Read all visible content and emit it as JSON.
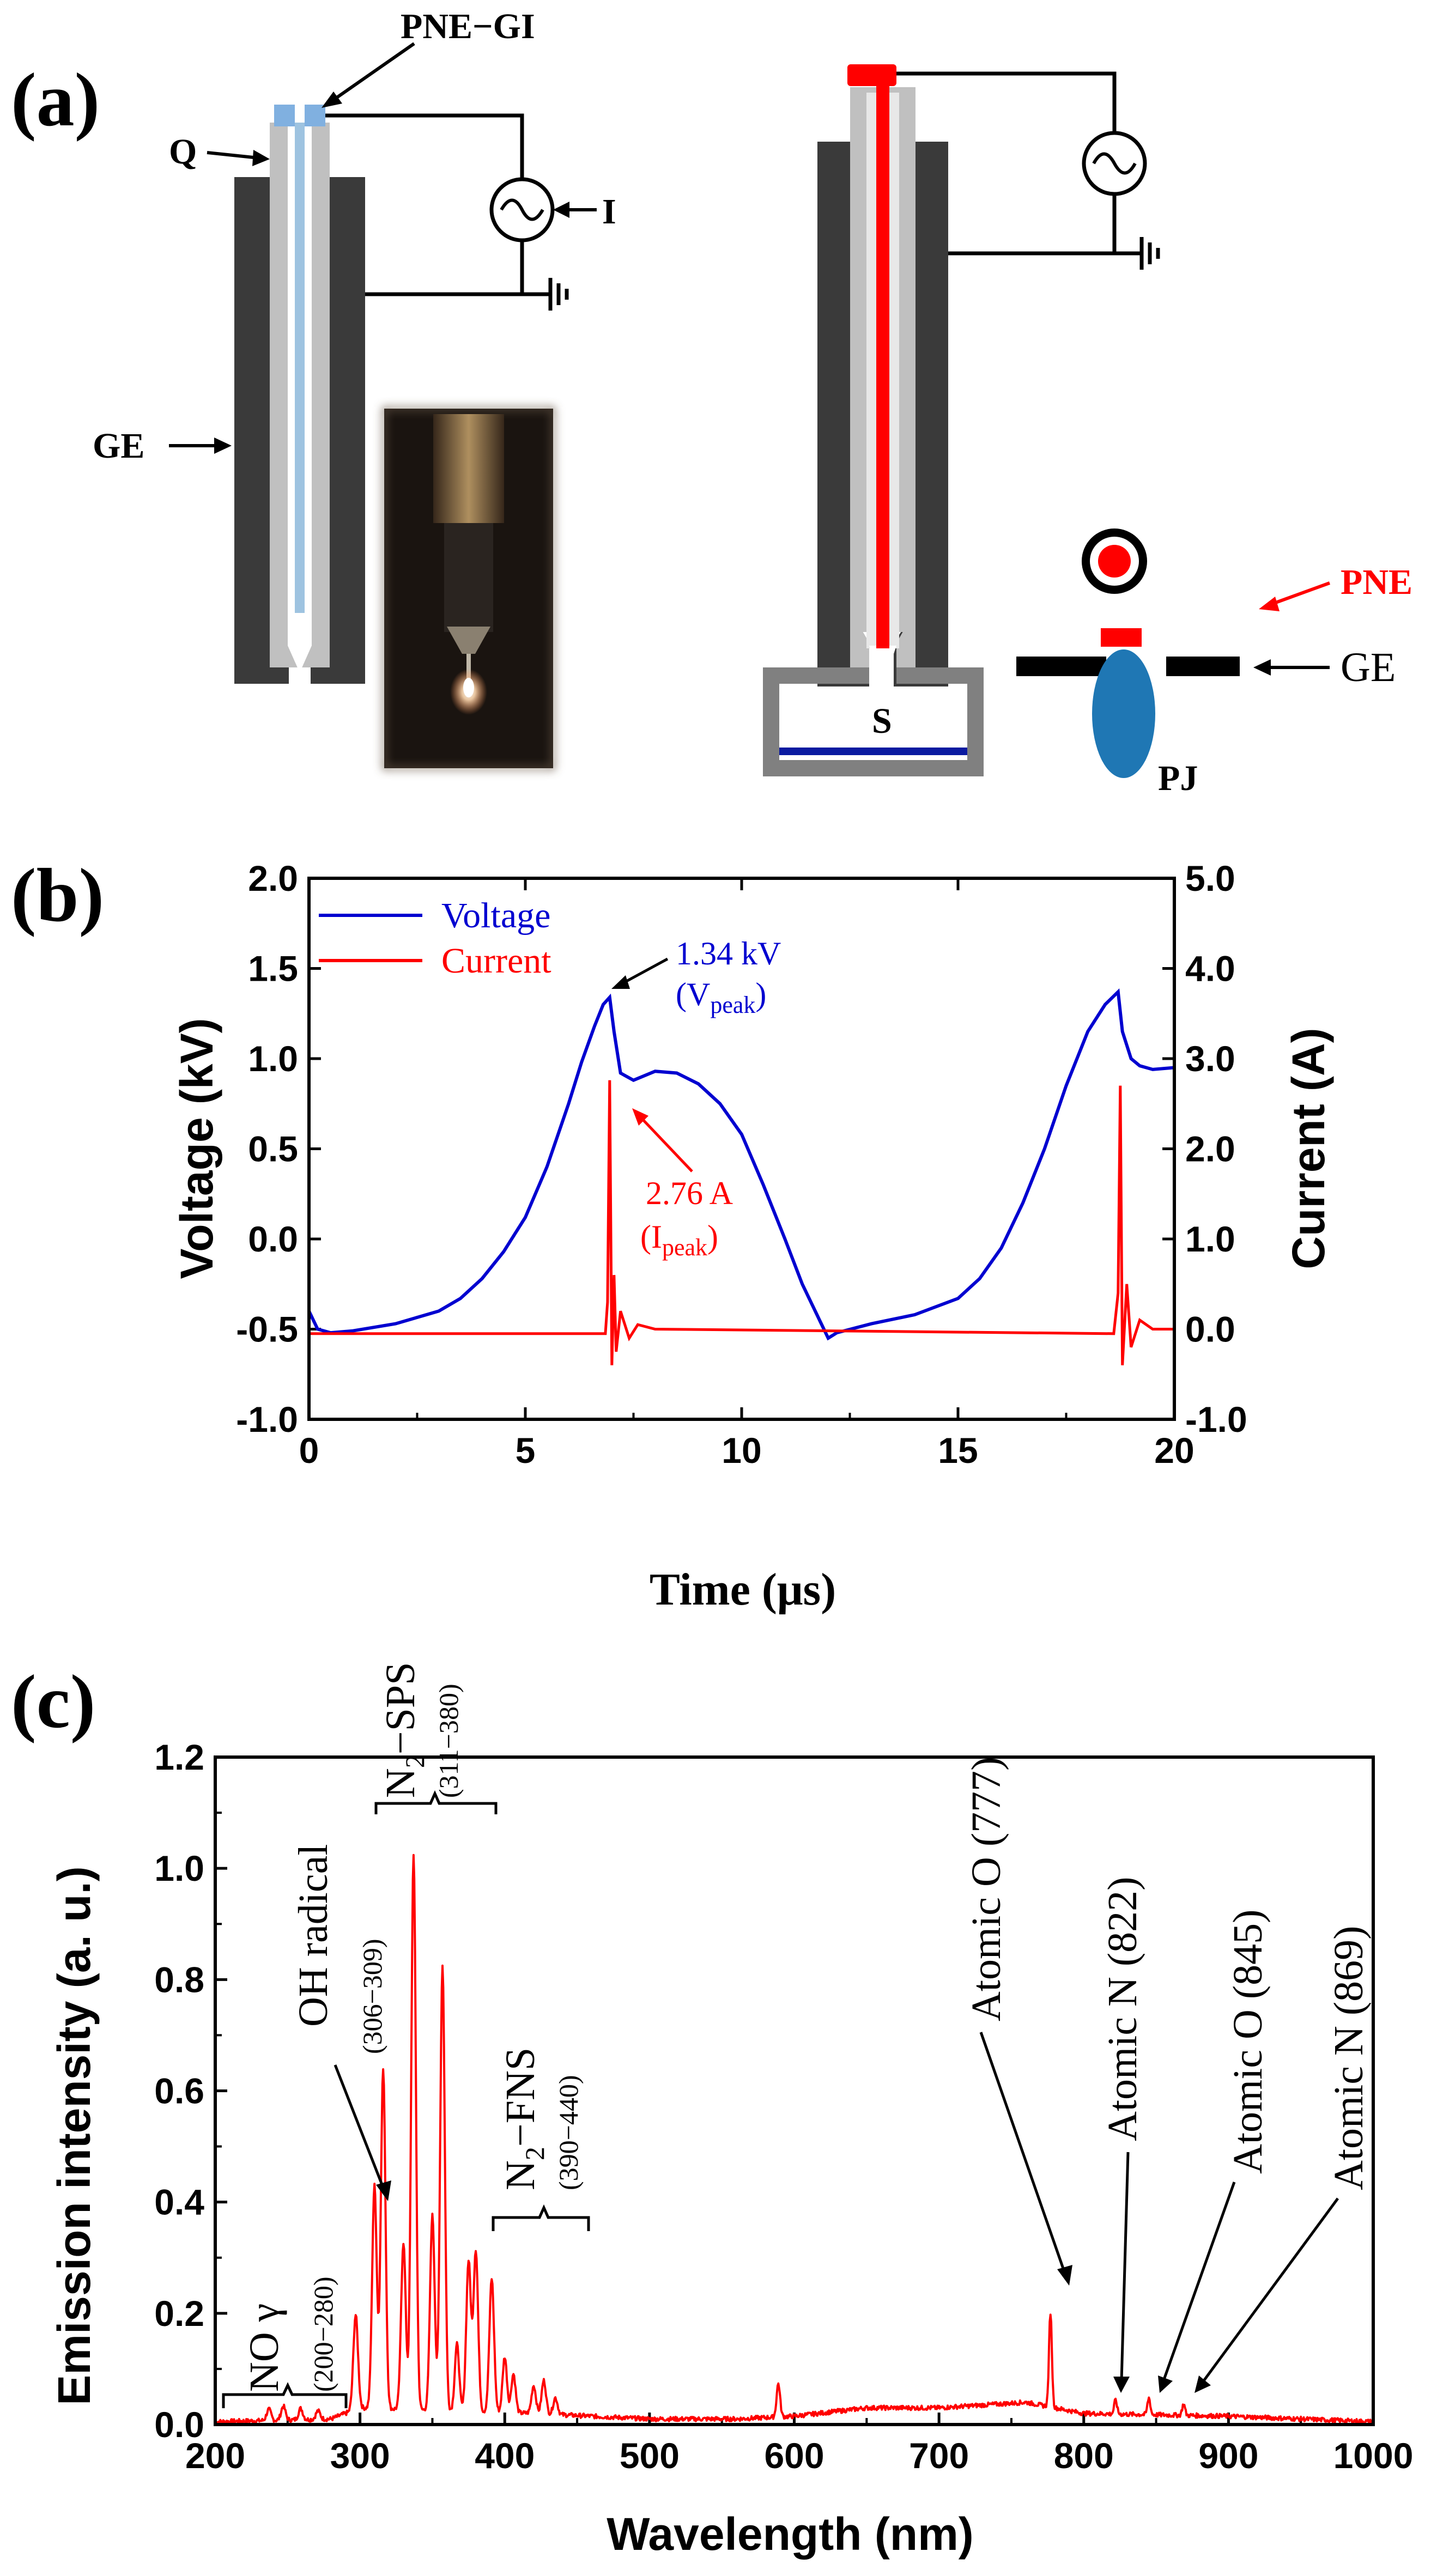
{
  "panels": {
    "a": "(a)",
    "b": "(b)",
    "c": "(c)"
  },
  "diagram": {
    "labels": {
      "pne_gi": "PNE−GI",
      "q": "Q",
      "i": "I",
      "ge_left": "GE",
      "s": "S",
      "pne": "PNE",
      "ge_right": "GE",
      "pj": "PJ"
    },
    "colors": {
      "electrode_dark": "#3a3a3a",
      "quartz": "#c0c0c0",
      "inner_gap": "#ffffff",
      "wire_blue": "#9ec3e0",
      "cap_blue": "#80b0e0",
      "pne_red": "#ff0000",
      "jet_blue": "#1f77b4",
      "substrate_line": "#0a1aa0",
      "photo_bg": "#1a1410"
    }
  },
  "chart_data": [
    {
      "type": "line",
      "id": "b",
      "xlabel": "Time (μs)",
      "ylabel": "Voltage (kV)",
      "ylabel_right": "Current (A)",
      "xlim": [
        0,
        20
      ],
      "ylim": [
        -1.0,
        2.0
      ],
      "ylim_right": [
        -1.0,
        5.0
      ],
      "x_ticks": [
        "0",
        "5",
        "10",
        "15",
        "20"
      ],
      "y_ticks": [
        "-1.0",
        "-0.5",
        "0.0",
        "0.5",
        "1.0",
        "1.5",
        "2.0"
      ],
      "y_ticks_right": [
        "-1.0",
        "0.0",
        "1.0",
        "2.0",
        "3.0",
        "4.0",
        "5.0"
      ],
      "legend_position": "top-left",
      "series": [
        {
          "name": "Voltage",
          "color": "#0000d0",
          "axis": "left",
          "x": [
            0,
            0.2,
            0.5,
            1.0,
            2.0,
            3.0,
            3.5,
            4.0,
            4.5,
            5.0,
            5.5,
            6.0,
            6.3,
            6.6,
            6.8,
            6.95,
            7.05,
            7.2,
            7.5,
            8.0,
            8.5,
            9.0,
            9.5,
            10.0,
            10.5,
            11.0,
            11.4,
            11.8,
            12.0,
            12.2,
            13.0,
            14.0,
            15.0,
            15.5,
            16.0,
            16.5,
            17.0,
            17.5,
            18.0,
            18.4,
            18.7,
            18.8,
            19.0,
            19.2,
            19.5,
            20.0
          ],
          "y": [
            -0.4,
            -0.5,
            -0.52,
            -0.51,
            -0.47,
            -0.4,
            -0.33,
            -0.22,
            -0.07,
            0.12,
            0.4,
            0.75,
            0.98,
            1.18,
            1.3,
            1.34,
            1.15,
            0.92,
            0.88,
            0.93,
            0.92,
            0.86,
            0.75,
            0.58,
            0.3,
            0.0,
            -0.25,
            -0.45,
            -0.55,
            -0.52,
            -0.47,
            -0.42,
            -0.33,
            -0.22,
            -0.05,
            0.2,
            0.5,
            0.85,
            1.15,
            1.3,
            1.37,
            1.15,
            1.0,
            0.96,
            0.94,
            0.95
          ],
          "annotation": "1.34 kV",
          "annotation_sub": "(V",
          "annotation_subscript": "peak",
          "annotation_close": ")"
        },
        {
          "name": "Current",
          "color": "#ff0000",
          "axis": "right",
          "x": [
            0,
            6.85,
            6.9,
            6.95,
            7.0,
            7.05,
            7.1,
            7.2,
            7.4,
            7.6,
            8.0,
            18.6,
            18.7,
            18.75,
            18.8,
            18.9,
            19.0,
            19.2,
            19.5,
            20.0
          ],
          "y": [
            -0.05,
            -0.05,
            0.3,
            2.76,
            -0.4,
            0.6,
            -0.25,
            0.2,
            -0.1,
            0.05,
            0.0,
            -0.05,
            0.4,
            2.7,
            -0.4,
            0.5,
            -0.2,
            0.1,
            0.0,
            0.0
          ],
          "annotation": "2.76 A",
          "annotation_sub": "(I",
          "annotation_subscript": "peak",
          "annotation_close": ")"
        }
      ]
    },
    {
      "type": "line",
      "id": "c",
      "xlabel": "Wavelength (nm)",
      "ylabel": "Emission intensity (a. u.)",
      "xlim": [
        200,
        1000
      ],
      "ylim": [
        0.0,
        1.2
      ],
      "x_ticks": [
        "200",
        "300",
        "400",
        "500",
        "600",
        "700",
        "800",
        "900",
        "1000"
      ],
      "y_ticks": [
        "0.0",
        "0.2",
        "0.4",
        "0.6",
        "0.8",
        "1.0",
        "1.2"
      ],
      "series": [
        {
          "color": "#ff0000",
          "baseline": [
            [
              200,
              0.005
            ],
            [
              280,
              0.01
            ],
            [
              290,
              0.02
            ],
            [
              300,
              0.03
            ],
            [
              420,
              0.02
            ],
            [
              500,
              0.01
            ],
            [
              560,
              0.01
            ],
            [
              600,
              0.015
            ],
            [
              650,
              0.03
            ],
            [
              700,
              0.03
            ],
            [
              760,
              0.04
            ],
            [
              800,
              0.02
            ],
            [
              900,
              0.015
            ],
            [
              1000,
              0.005
            ]
          ],
          "peaks": [
            [
              237,
              0.02,
              1.5
            ],
            [
              247,
              0.025,
              1.5
            ],
            [
              259,
              0.02,
              1.5
            ],
            [
              271,
              0.015,
              1.5
            ],
            [
              297,
              0.17,
              1.6
            ],
            [
              310,
              0.4,
              1.6
            ],
            [
              316,
              0.61,
              1.6
            ],
            [
              330,
              0.3,
              1.6
            ],
            [
              337,
              1.0,
              1.6
            ],
            [
              350,
              0.35,
              1.6
            ],
            [
              357,
              0.8,
              1.6
            ],
            [
              367,
              0.12,
              1.5
            ],
            [
              375,
              0.27,
              1.6
            ],
            [
              380,
              0.29,
              1.6
            ],
            [
              391,
              0.24,
              1.6
            ],
            [
              400,
              0.1,
              1.5
            ],
            [
              406,
              0.07,
              1.5
            ],
            [
              420,
              0.05,
              1.5
            ],
            [
              427,
              0.06,
              1.5
            ],
            [
              435,
              0.03,
              1.5
            ],
            [
              589,
              0.06,
              1.2
            ],
            [
              777,
              0.17,
              1.0
            ],
            [
              822,
              0.025,
              1.0
            ],
            [
              845,
              0.03,
              1.0
            ],
            [
              869,
              0.02,
              1.0
            ]
          ]
        }
      ],
      "annotations": [
        {
          "text": "NO γ",
          "sub": "(200−280)"
        },
        {
          "text": "OH radical",
          "sub": "(306−309)"
        },
        {
          "text": "N",
          "subscript": "2",
          "text2": "−SPS",
          "sub": "(311−380)"
        },
        {
          "text": "N",
          "subscript": "2",
          "text2": "−FNS",
          "sub": "(390−440)"
        },
        {
          "text": "Atomic O (777)"
        },
        {
          "text": "Atomic N (822)"
        },
        {
          "text": "Atomic O (845)"
        },
        {
          "text": "Atomic N (869)"
        }
      ]
    }
  ]
}
